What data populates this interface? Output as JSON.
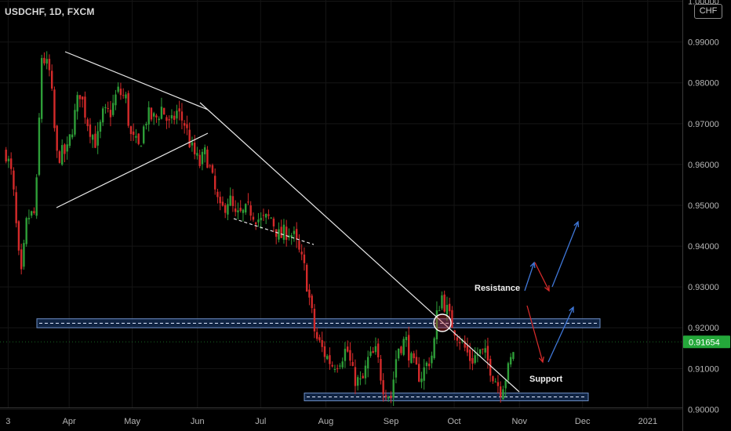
{
  "header": {
    "symbol": "USDCHF, 1D, FXCM",
    "currency": "CHF"
  },
  "colors": {
    "up": "#2e9e38",
    "down": "#d42a2a",
    "grid": "#151515",
    "axis_text": "#b5b5b5",
    "trend_line": "#e8e8e8",
    "zone_fill": "#16305a",
    "zone_border": "#6d8fc7",
    "price_tag": "#24a83a",
    "arrow_blue": "#3f77d8",
    "arrow_red": "#d42a2a"
  },
  "chart_data": {
    "type": "candlestick",
    "title": "USDCHF, 1D, FXCM",
    "x_domain": [
      "2020-03-01",
      "2021-01-10"
    ],
    "ylim": [
      0.8947,
      1.0003
    ],
    "y_ticks": [
      "1.00000",
      "0.99000",
      "0.98000",
      "0.97000",
      "0.96000",
      "0.95000",
      "0.94000",
      "0.93000",
      "0.92000",
      "0.91000",
      "0.90000"
    ],
    "y_tick_values": [
      1.0,
      0.99,
      0.98,
      0.97,
      0.96,
      0.95,
      0.94,
      0.93,
      0.92,
      0.91,
      0.9
    ],
    "x_ticks": [
      {
        "label": "3",
        "date": "2020-03-03"
      },
      {
        "label": "Apr",
        "date": "2020-04-01"
      },
      {
        "label": "May",
        "date": "2020-05-01"
      },
      {
        "label": "Jun",
        "date": "2020-06-01"
      },
      {
        "label": "Jul",
        "date": "2020-07-01"
      },
      {
        "label": "Aug",
        "date": "2020-08-01"
      },
      {
        "label": "Sep",
        "date": "2020-09-01"
      },
      {
        "label": "Oct",
        "date": "2020-10-01"
      },
      {
        "label": "Nov",
        "date": "2020-11-01"
      },
      {
        "label": "Dec",
        "date": "2020-12-01"
      },
      {
        "label": "2021",
        "date": "2021-01-01"
      }
    ],
    "last_price": "0.91654",
    "last_price_value": 0.91654,
    "price_path": [
      [
        "2020-03-02",
        0.963
      ],
      [
        "2020-03-05",
        0.9565
      ],
      [
        "2020-03-09",
        0.931
      ],
      [
        "2020-03-12",
        0.947
      ],
      [
        "2020-03-16",
        0.948
      ],
      [
        "2020-03-19",
        0.987
      ],
      [
        "2020-03-23",
        0.982
      ],
      [
        "2020-03-26",
        0.962
      ],
      [
        "2020-03-31",
        0.963
      ],
      [
        "2020-04-06",
        0.978
      ],
      [
        "2020-04-10",
        0.97
      ],
      [
        "2020-04-14",
        0.965
      ],
      [
        "2020-04-17",
        0.972
      ],
      [
        "2020-04-21",
        0.973
      ],
      [
        "2020-04-24",
        0.978
      ],
      [
        "2020-04-28",
        0.976
      ],
      [
        "2020-04-30",
        0.967
      ],
      [
        "2020-05-04",
        0.964
      ],
      [
        "2020-05-08",
        0.972
      ],
      [
        "2020-05-12",
        0.971
      ],
      [
        "2020-05-15",
        0.974
      ],
      [
        "2020-05-19",
        0.969
      ],
      [
        "2020-05-22",
        0.973
      ],
      [
        "2020-05-26",
        0.97
      ],
      [
        "2020-05-29",
        0.964
      ],
      [
        "2020-06-02",
        0.96
      ],
      [
        "2020-06-05",
        0.963
      ],
      [
        "2020-06-09",
        0.954
      ],
      [
        "2020-06-12",
        0.948
      ],
      [
        "2020-06-16",
        0.952
      ],
      [
        "2020-06-19",
        0.947
      ],
      [
        "2020-06-23",
        0.948
      ],
      [
        "2020-06-26",
        0.949
      ],
      [
        "2020-07-01",
        0.946
      ],
      [
        "2020-07-06",
        0.947
      ],
      [
        "2020-07-10",
        0.942
      ],
      [
        "2020-07-14",
        0.944
      ],
      [
        "2020-07-17",
        0.942
      ],
      [
        "2020-07-22",
        0.934
      ],
      [
        "2020-07-27",
        0.918
      ],
      [
        "2020-07-31",
        0.914
      ],
      [
        "2020-08-04",
        0.911
      ],
      [
        "2020-08-07",
        0.912
      ],
      [
        "2020-08-11",
        0.915
      ],
      [
        "2020-08-14",
        0.908
      ],
      [
        "2020-08-18",
        0.906
      ],
      [
        "2020-08-21",
        0.912
      ],
      [
        "2020-08-25",
        0.914
      ],
      [
        "2020-08-28",
        0.906
      ],
      [
        "2020-09-01",
        0.903
      ],
      [
        "2020-09-04",
        0.915
      ],
      [
        "2020-09-08",
        0.917
      ],
      [
        "2020-09-11",
        0.911
      ],
      [
        "2020-09-15",
        0.908
      ],
      [
        "2020-09-18",
        0.911
      ],
      [
        "2020-09-21",
        0.914
      ],
      [
        "2020-09-23",
        0.924
      ],
      [
        "2020-09-25",
        0.928
      ],
      [
        "2020-09-29",
        0.922
      ],
      [
        "2020-10-02",
        0.919
      ],
      [
        "2020-10-06",
        0.915
      ],
      [
        "2020-10-09",
        0.912
      ],
      [
        "2020-10-13",
        0.914
      ],
      [
        "2020-10-16",
        0.913
      ],
      [
        "2020-10-20",
        0.908
      ],
      [
        "2020-10-23",
        0.905
      ],
      [
        "2020-10-27",
        0.91
      ],
      [
        "2020-10-30",
        0.9165
      ]
    ],
    "resistance_zone": {
      "label": "Resistance",
      "from": 0.92,
      "to": 0.9222
    },
    "support_zone": {
      "label": "Support",
      "from": 0.9021,
      "to": 0.904
    },
    "annotations": {
      "labels": [
        "Resistance",
        "Support"
      ]
    }
  }
}
